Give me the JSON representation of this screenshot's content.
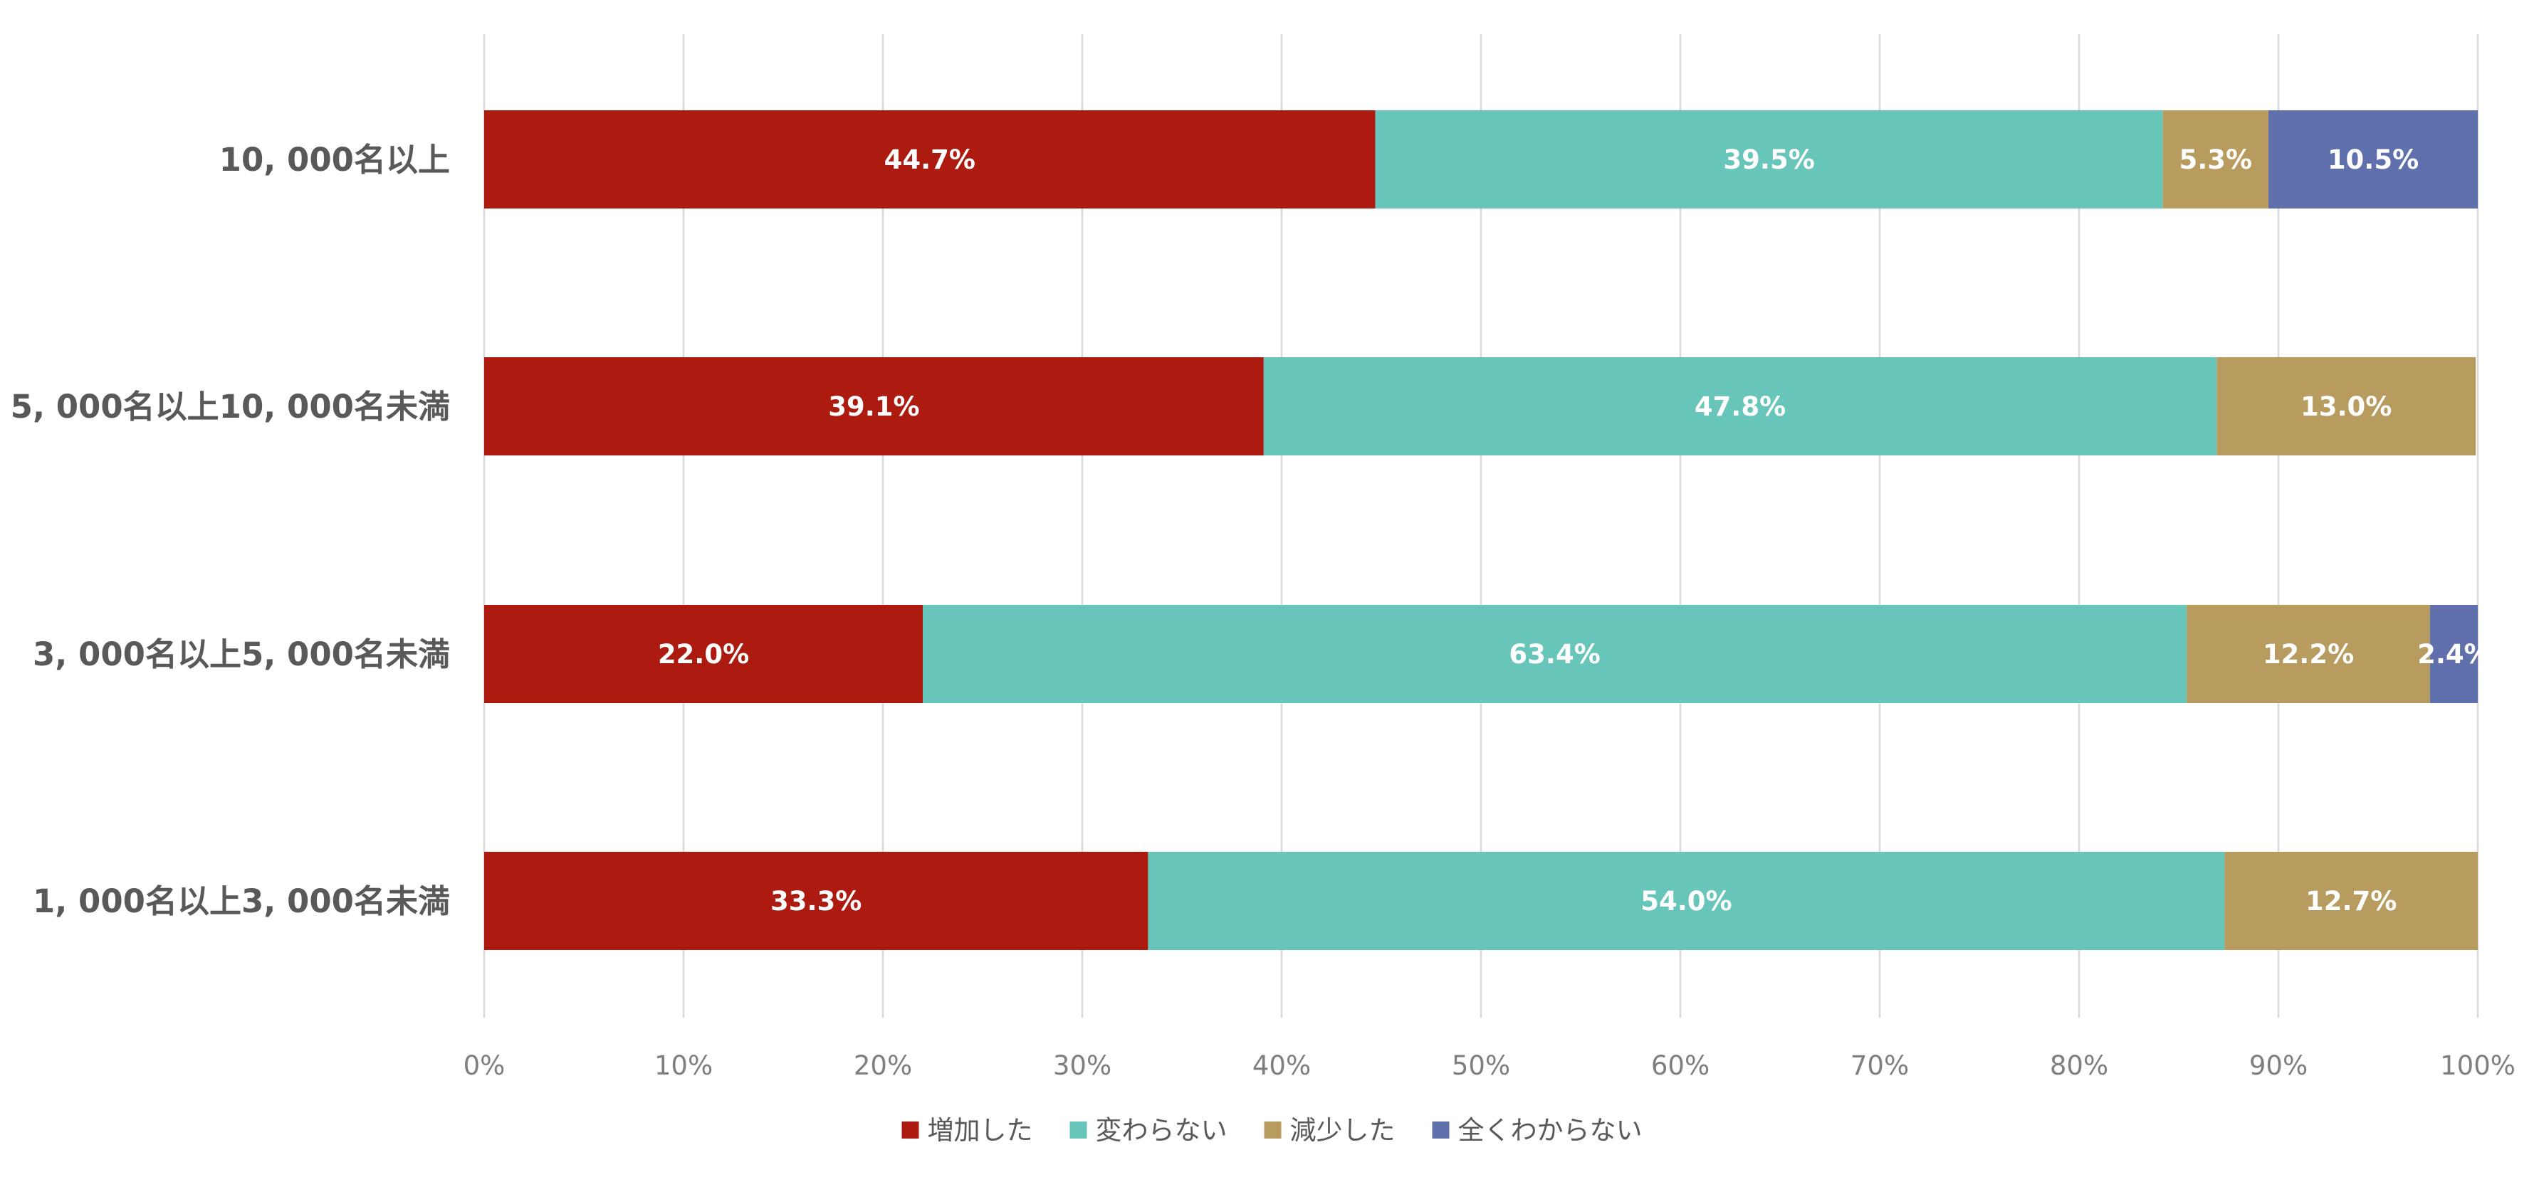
{
  "chart_data": {
    "type": "bar",
    "orientation": "horizontal",
    "stacked": "percent",
    "categories": [
      "10, 000名以上",
      "5, 000名以上10, 000名未満",
      "3, 000名以上5, 000名未満",
      "1, 000名以上3, 000名未満"
    ],
    "series": [
      {
        "name": "増加した",
        "color": "#ac1a10",
        "values": [
          44.7,
          39.1,
          22.0,
          33.3
        ],
        "labels": [
          "44.7%",
          "39.1%",
          "22.0%",
          "33.3%"
        ]
      },
      {
        "name": "変わらない",
        "color": "#67c6b9",
        "values": [
          39.5,
          47.8,
          63.4,
          54.0
        ],
        "labels": [
          "39.5%",
          "47.8%",
          "63.4%",
          "54.0%"
        ]
      },
      {
        "name": "減少した",
        "color": "#b89b5e",
        "values": [
          5.3,
          13.0,
          12.2,
          12.7
        ],
        "labels": [
          "5.3%",
          "13.0%",
          "12.2%",
          "12.7%"
        ]
      },
      {
        "name": "全くわからない",
        "color": "#6070ad",
        "values": [
          10.5,
          0,
          2.4,
          0
        ],
        "labels": [
          "10.5%",
          "",
          "2.4%",
          ""
        ]
      }
    ],
    "x_ticks": [
      "0%",
      "10%",
      "20%",
      "30%",
      "40%",
      "50%",
      "60%",
      "70%",
      "80%",
      "90%",
      "100%"
    ],
    "xlim": [
      0,
      100
    ],
    "grid": "vertical",
    "legend_position": "bottom",
    "title": "",
    "xlabel": "",
    "ylabel": ""
  }
}
